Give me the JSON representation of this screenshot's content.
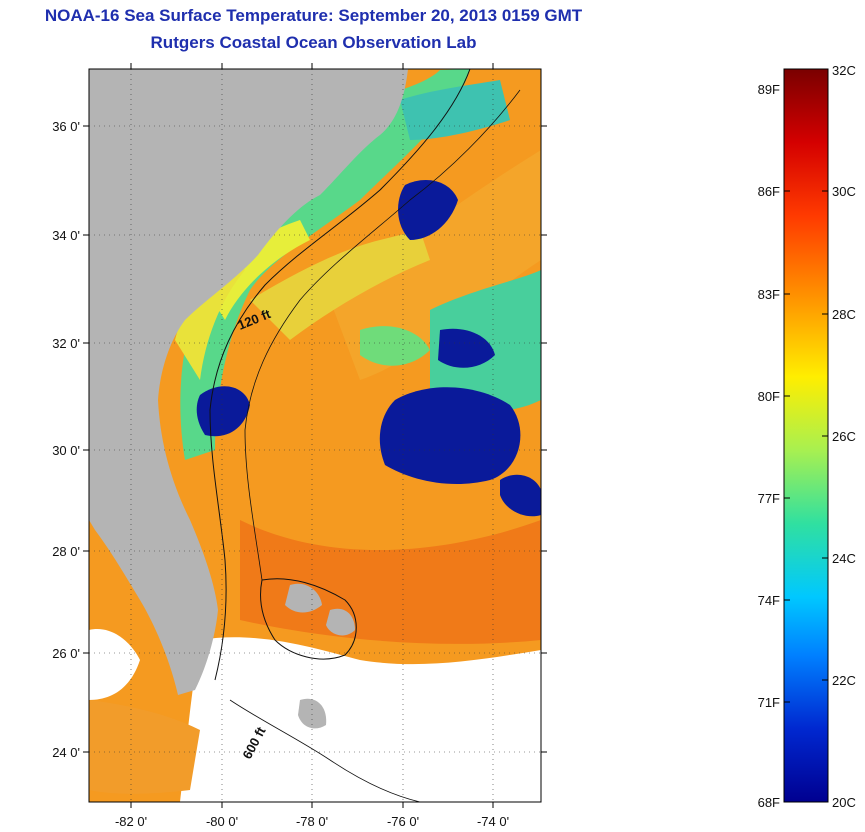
{
  "title": {
    "line1": "NOAA-16 Sea Surface Temperature:  September 20, 2013 0159 GMT",
    "line2": "Rutgers Coastal Ocean Observation Lab"
  },
  "map": {
    "lat_labels": [
      "36 0'",
      "34 0'",
      "32 0'",
      "30 0'",
      "28 0'",
      "26 0'",
      "24 0'"
    ],
    "lon_labels": [
      "-82 0'",
      "-80 0'",
      "-78 0'",
      "-76 0'",
      "-74 0'"
    ],
    "contour_labels": [
      "120 ft",
      "600 ft"
    ],
    "colors": {
      "land": "#b4b4b4",
      "no_data": "#ffffff",
      "cloud": "#0a1a9a"
    }
  },
  "colorbar": {
    "fahrenheit_labels": [
      "89F",
      "86F",
      "83F",
      "80F",
      "77F",
      "74F",
      "71F",
      "68F"
    ],
    "celsius_labels": [
      "32C",
      "30C",
      "28C",
      "26C",
      "24C",
      "22C",
      "20C"
    ],
    "range_c": [
      20,
      32
    ]
  }
}
